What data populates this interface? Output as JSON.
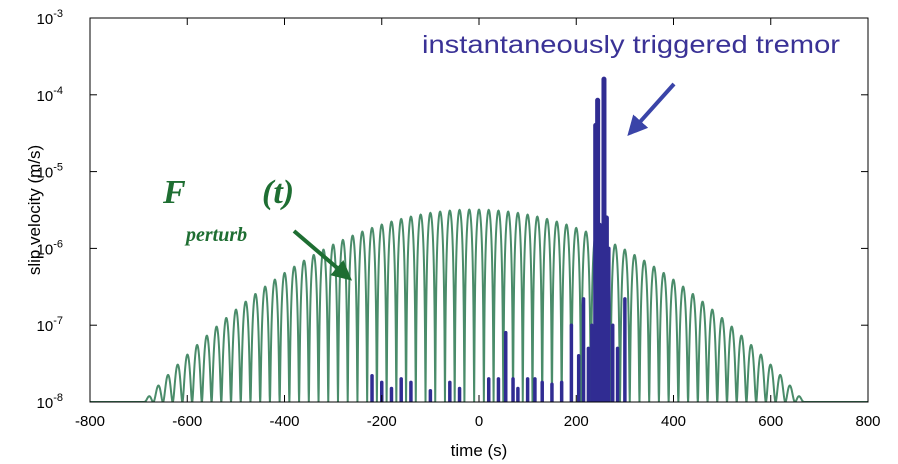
{
  "chart_data": {
    "type": "line",
    "xlabel": "time (s)",
    "ylabel": "slip velocity (m/s)",
    "xlim": [
      -800,
      800
    ],
    "ylim": [
      1e-08,
      0.001
    ],
    "yscale": "log",
    "x_ticks": [
      "-800",
      "-600",
      "-400",
      "-200",
      "0",
      "200",
      "400",
      "600",
      "800"
    ],
    "y_ticks": [
      {
        "base": "10",
        "exp": "-8"
      },
      {
        "base": "10",
        "exp": "-7"
      },
      {
        "base": "10",
        "exp": "-6"
      },
      {
        "base": "10",
        "exp": "-5"
      },
      {
        "base": "10",
        "exp": "-4"
      },
      {
        "base": "10",
        "exp": "-3"
      }
    ],
    "grid": false,
    "series": [
      {
        "color": "#4a8c6a",
        "envelope_peak": 3.2e-06,
        "envelope_center": -10,
        "envelope_width": 200,
        "oscillation_period": 20
      },
      {
        "color": "#302c92",
        "spikes": [
          {
            "x": -220,
            "y": 2.2e-08
          },
          {
            "x": -200,
            "y": 1.8e-08
          },
          {
            "x": -180,
            "y": 1.5e-08
          },
          {
            "x": -160,
            "y": 2e-08
          },
          {
            "x": -140,
            "y": 1.8e-08
          },
          {
            "x": -100,
            "y": 1.4e-08
          },
          {
            "x": -60,
            "y": 1.8e-08
          },
          {
            "x": -40,
            "y": 1.5e-08
          },
          {
            "x": 20,
            "y": 2e-08
          },
          {
            "x": 40,
            "y": 2e-08
          },
          {
            "x": 55,
            "y": 8e-08
          },
          {
            "x": 70,
            "y": 2e-08
          },
          {
            "x": 80,
            "y": 1.5e-08
          },
          {
            "x": 100,
            "y": 2e-08
          },
          {
            "x": 115,
            "y": 2e-08
          },
          {
            "x": 130,
            "y": 1.8e-08
          },
          {
            "x": 150,
            "y": 1.7e-08
          },
          {
            "x": 170,
            "y": 1.8e-08
          },
          {
            "x": 190,
            "y": 1e-07
          },
          {
            "x": 205,
            "y": 4e-08
          },
          {
            "x": 215,
            "y": 2.2e-07
          },
          {
            "x": 225,
            "y": 5e-08
          },
          {
            "x": 232,
            "y": 1e-07
          },
          {
            "x": 240,
            "y": 4e-05
          },
          {
            "x": 244,
            "y": 8.5e-05
          },
          {
            "x": 248,
            "y": 2e-06
          },
          {
            "x": 252,
            "y": 1.2e-06
          },
          {
            "x": 257,
            "y": 0.00016
          },
          {
            "x": 262,
            "y": 2.5e-06
          },
          {
            "x": 267,
            "y": 1e-06
          },
          {
            "x": 275,
            "y": 1e-07
          },
          {
            "x": 285,
            "y": 5e-08
          },
          {
            "x": 300,
            "y": 2.2e-07
          }
        ]
      }
    ],
    "annotations": [
      {
        "text": "instantaneously triggered tremor",
        "color": "#3a3296"
      },
      {
        "text_main": "F",
        "text_sub": "perturb",
        "text_arg": "(t)",
        "color": "#1e6e32"
      }
    ]
  }
}
